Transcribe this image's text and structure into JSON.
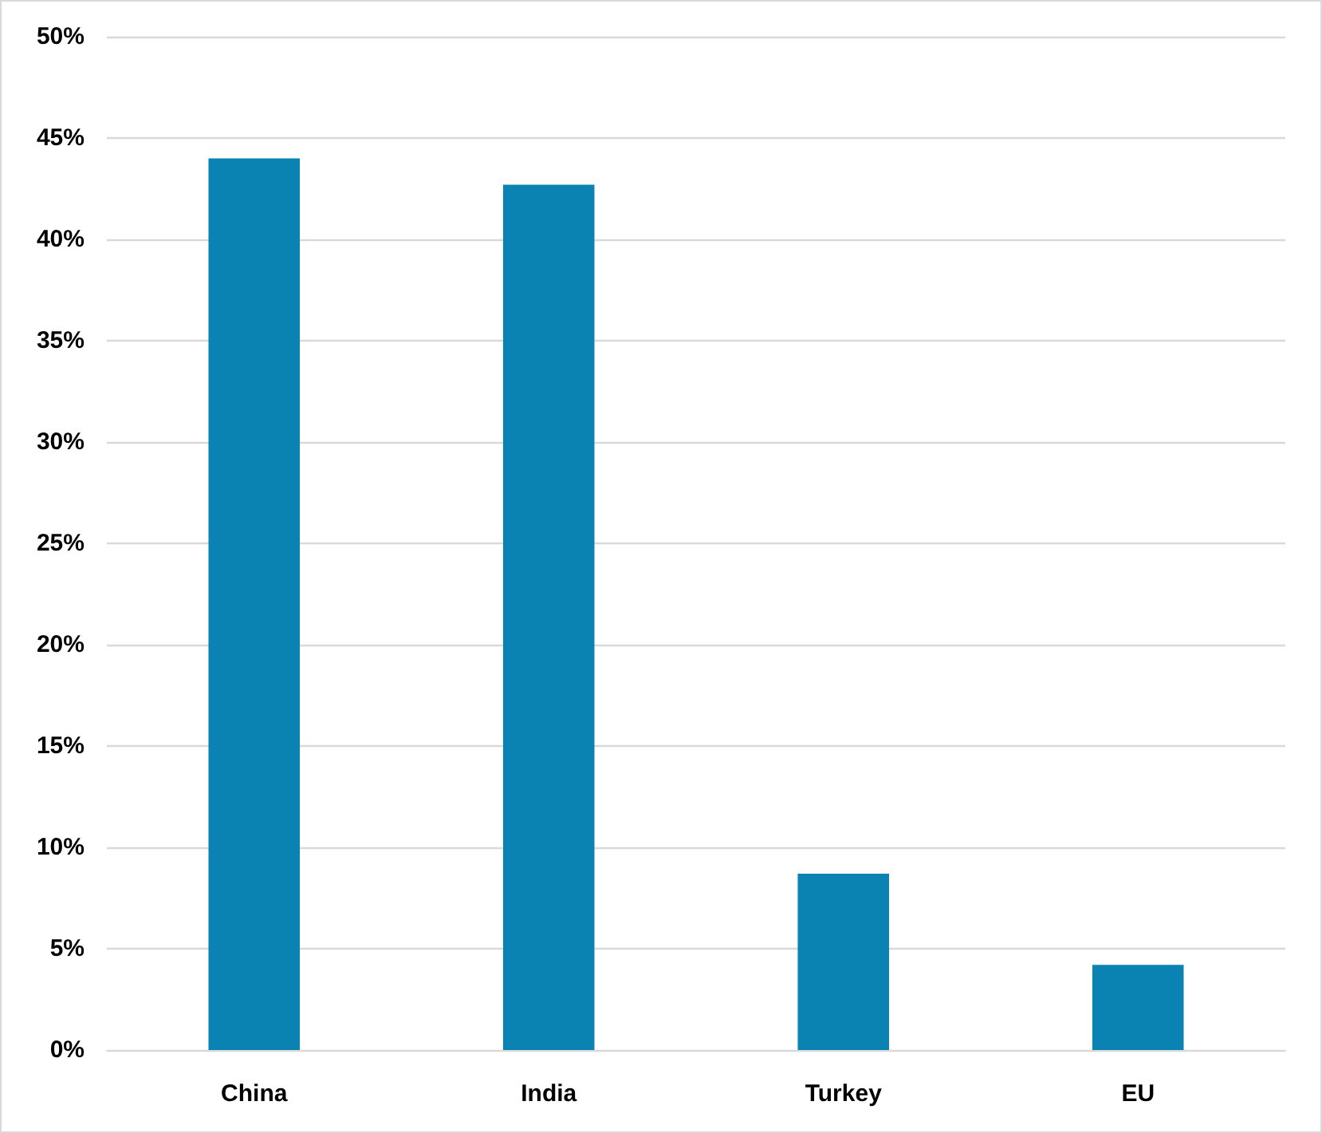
{
  "chart_data": {
    "type": "bar",
    "categories": [
      "China",
      "India",
      "Turkey",
      "EU"
    ],
    "values": [
      44,
      42.7,
      8.7,
      4.2
    ],
    "color": "#0a83b3",
    "ylim": [
      0,
      50
    ],
    "yticks": [
      {
        "value": 0,
        "label": "0%"
      },
      {
        "value": 5,
        "label": "5%"
      },
      {
        "value": 10,
        "label": "10%"
      },
      {
        "value": 15,
        "label": "15%"
      },
      {
        "value": 20,
        "label": "20%"
      },
      {
        "value": 25,
        "label": "25%"
      },
      {
        "value": 30,
        "label": "30%"
      },
      {
        "value": 35,
        "label": "35%"
      },
      {
        "value": 40,
        "label": "40%"
      },
      {
        "value": 45,
        "label": "45%"
      },
      {
        "value": 50,
        "label": "50%"
      }
    ],
    "grid": "y"
  }
}
